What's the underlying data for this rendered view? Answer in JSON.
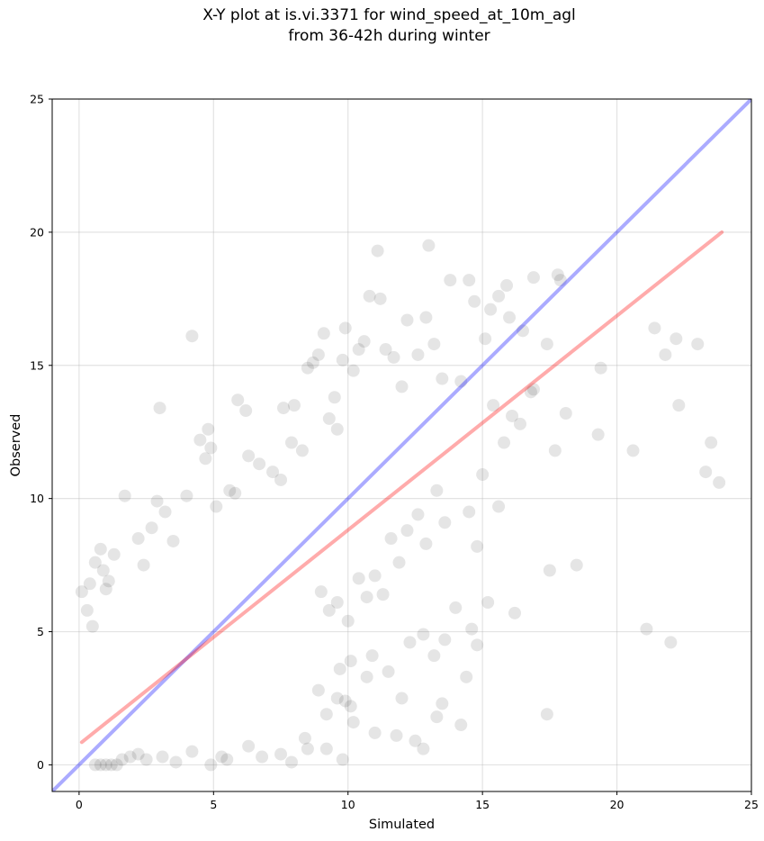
{
  "chart_data": {
    "type": "scatter",
    "title": [
      "X-Y plot at is.vi.3371 for wind_speed_at_10m_agl",
      "from 36-42h during winter"
    ],
    "xlabel": "Simulated",
    "ylabel": "Observed",
    "xlim": [
      -1,
      25
    ],
    "ylim": [
      -1,
      25
    ],
    "xticks": [
      0,
      5,
      10,
      15,
      20,
      25
    ],
    "yticks": [
      0,
      5,
      10,
      15,
      20,
      25
    ],
    "xtick_labels": [
      "0",
      "5",
      "10",
      "15",
      "20",
      "25"
    ],
    "ytick_labels": [
      "0",
      "5",
      "10",
      "15",
      "20",
      "25"
    ],
    "grid": true,
    "point_color": "#000000",
    "identity_line": {
      "from": [
        -1,
        -1
      ],
      "to": [
        25,
        25
      ],
      "color": "#0000ff"
    },
    "fit_line": {
      "from": [
        0.1,
        0.85
      ],
      "to": [
        23.9,
        20.0
      ],
      "color": "#ff0000"
    },
    "points": [
      [
        0.1,
        6.5
      ],
      [
        0.3,
        5.8
      ],
      [
        0.4,
        6.8
      ],
      [
        0.5,
        5.2
      ],
      [
        0.6,
        7.6
      ],
      [
        0.8,
        8.1
      ],
      [
        0.9,
        7.3
      ],
      [
        1.0,
        6.6
      ],
      [
        1.1,
        6.9
      ],
      [
        1.3,
        7.9
      ],
      [
        0.6,
        0.0
      ],
      [
        0.8,
        0.0
      ],
      [
        1.0,
        0.0
      ],
      [
        1.2,
        0.0
      ],
      [
        1.4,
        0.0
      ],
      [
        1.6,
        0.2
      ],
      [
        1.9,
        0.3
      ],
      [
        2.2,
        0.4
      ],
      [
        2.5,
        0.2
      ],
      [
        3.1,
        0.3
      ],
      [
        3.6,
        0.1
      ],
      [
        4.2,
        0.5
      ],
      [
        4.9,
        0.0
      ],
      [
        5.3,
        0.3
      ],
      [
        5.5,
        0.2
      ],
      [
        6.3,
        0.7
      ],
      [
        6.8,
        0.3
      ],
      [
        7.5,
        0.4
      ],
      [
        7.9,
        0.1
      ],
      [
        8.5,
        0.6
      ],
      [
        9.2,
        0.6
      ],
      [
        9.8,
        0.2
      ],
      [
        10.2,
        1.6
      ],
      [
        11.0,
        1.2
      ],
      [
        11.8,
        1.1
      ],
      [
        12.5,
        0.9
      ],
      [
        12.0,
        2.5
      ],
      [
        12.8,
        0.6
      ],
      [
        13.3,
        1.8
      ],
      [
        13.5,
        2.3
      ],
      [
        14.2,
        1.5
      ],
      [
        14.4,
        3.3
      ],
      [
        14.8,
        4.5
      ],
      [
        14.6,
        5.1
      ],
      [
        14.0,
        5.9
      ],
      [
        13.6,
        4.7
      ],
      [
        13.2,
        4.1
      ],
      [
        12.8,
        4.9
      ],
      [
        12.3,
        4.6
      ],
      [
        11.5,
        3.5
      ],
      [
        10.9,
        4.1
      ],
      [
        10.7,
        3.3
      ],
      [
        10.1,
        3.9
      ],
      [
        9.7,
        3.6
      ],
      [
        9.9,
        2.4
      ],
      [
        10.1,
        2.2
      ],
      [
        9.6,
        2.5
      ],
      [
        8.9,
        2.8
      ],
      [
        9.2,
        1.9
      ],
      [
        8.4,
        1.0
      ],
      [
        1.7,
        10.1
      ],
      [
        2.2,
        8.5
      ],
      [
        2.4,
        7.5
      ],
      [
        2.7,
        8.9
      ],
      [
        2.9,
        9.9
      ],
      [
        3.0,
        13.4
      ],
      [
        3.2,
        9.5
      ],
      [
        3.5,
        8.4
      ],
      [
        4.0,
        10.1
      ],
      [
        4.2,
        16.1
      ],
      [
        4.5,
        12.2
      ],
      [
        4.8,
        12.6
      ],
      [
        4.7,
        11.5
      ],
      [
        4.9,
        11.9
      ],
      [
        5.1,
        9.7
      ],
      [
        5.6,
        10.3
      ],
      [
        5.8,
        10.2
      ],
      [
        5.9,
        13.7
      ],
      [
        6.2,
        13.3
      ],
      [
        6.3,
        11.6
      ],
      [
        6.7,
        11.3
      ],
      [
        7.2,
        11.0
      ],
      [
        7.5,
        10.7
      ],
      [
        7.6,
        13.4
      ],
      [
        7.9,
        12.1
      ],
      [
        8.0,
        13.5
      ],
      [
        8.3,
        11.8
      ],
      [
        8.5,
        14.9
      ],
      [
        8.7,
        15.1
      ],
      [
        8.9,
        15.4
      ],
      [
        9.1,
        16.2
      ],
      [
        9.3,
        13.0
      ],
      [
        9.5,
        13.8
      ],
      [
        9.6,
        12.6
      ],
      [
        9.8,
        15.2
      ],
      [
        9.9,
        16.4
      ],
      [
        10.2,
        14.8
      ],
      [
        10.4,
        15.6
      ],
      [
        10.6,
        15.9
      ],
      [
        10.8,
        17.6
      ],
      [
        11.2,
        17.5
      ],
      [
        11.1,
        19.3
      ],
      [
        11.4,
        15.6
      ],
      [
        11.7,
        15.3
      ],
      [
        12.0,
        14.2
      ],
      [
        12.2,
        16.7
      ],
      [
        12.6,
        15.4
      ],
      [
        12.9,
        16.8
      ],
      [
        13.0,
        19.5
      ],
      [
        13.2,
        15.8
      ],
      [
        13.5,
        14.5
      ],
      [
        13.8,
        18.2
      ],
      [
        14.2,
        14.4
      ],
      [
        14.5,
        18.2
      ],
      [
        14.7,
        17.4
      ],
      [
        15.1,
        16.0
      ],
      [
        15.3,
        17.1
      ],
      [
        15.6,
        17.6
      ],
      [
        15.9,
        18.0
      ],
      [
        16.0,
        16.8
      ],
      [
        16.5,
        16.3
      ],
      [
        16.9,
        18.3
      ],
      [
        17.4,
        15.8
      ],
      [
        17.8,
        18.4
      ],
      [
        17.9,
        18.2
      ],
      [
        18.1,
        13.2
      ],
      [
        17.7,
        11.8
      ],
      [
        17.5,
        7.3
      ],
      [
        17.4,
        1.9
      ],
      [
        18.5,
        7.5
      ],
      [
        19.3,
        12.4
      ],
      [
        19.4,
        14.9
      ],
      [
        20.6,
        11.8
      ],
      [
        21.1,
        5.1
      ],
      [
        21.4,
        16.4
      ],
      [
        21.8,
        15.4
      ],
      [
        22.0,
        4.6
      ],
      [
        22.2,
        16.0
      ],
      [
        22.3,
        13.5
      ],
      [
        23.0,
        15.8
      ],
      [
        23.3,
        11.0
      ],
      [
        23.5,
        12.1
      ],
      [
        23.8,
        10.6
      ],
      [
        16.2,
        5.7
      ],
      [
        15.2,
        6.1
      ],
      [
        15.6,
        9.7
      ],
      [
        15.8,
        12.1
      ],
      [
        16.1,
        13.1
      ],
      [
        16.4,
        12.8
      ],
      [
        16.8,
        14.0
      ],
      [
        16.9,
        14.1
      ],
      [
        15.4,
        13.5
      ],
      [
        15.0,
        10.9
      ],
      [
        14.8,
        8.2
      ],
      [
        14.5,
        9.5
      ],
      [
        13.6,
        9.1
      ],
      [
        13.3,
        10.3
      ],
      [
        12.9,
        8.3
      ],
      [
        12.6,
        9.4
      ],
      [
        12.2,
        8.8
      ],
      [
        11.9,
        7.6
      ],
      [
        11.6,
        8.5
      ],
      [
        11.3,
        6.4
      ],
      [
        11.0,
        7.1
      ],
      [
        10.7,
        6.3
      ],
      [
        10.4,
        7.0
      ],
      [
        10.0,
        5.4
      ],
      [
        9.6,
        6.1
      ],
      [
        9.3,
        5.8
      ],
      [
        9.0,
        6.5
      ]
    ]
  }
}
